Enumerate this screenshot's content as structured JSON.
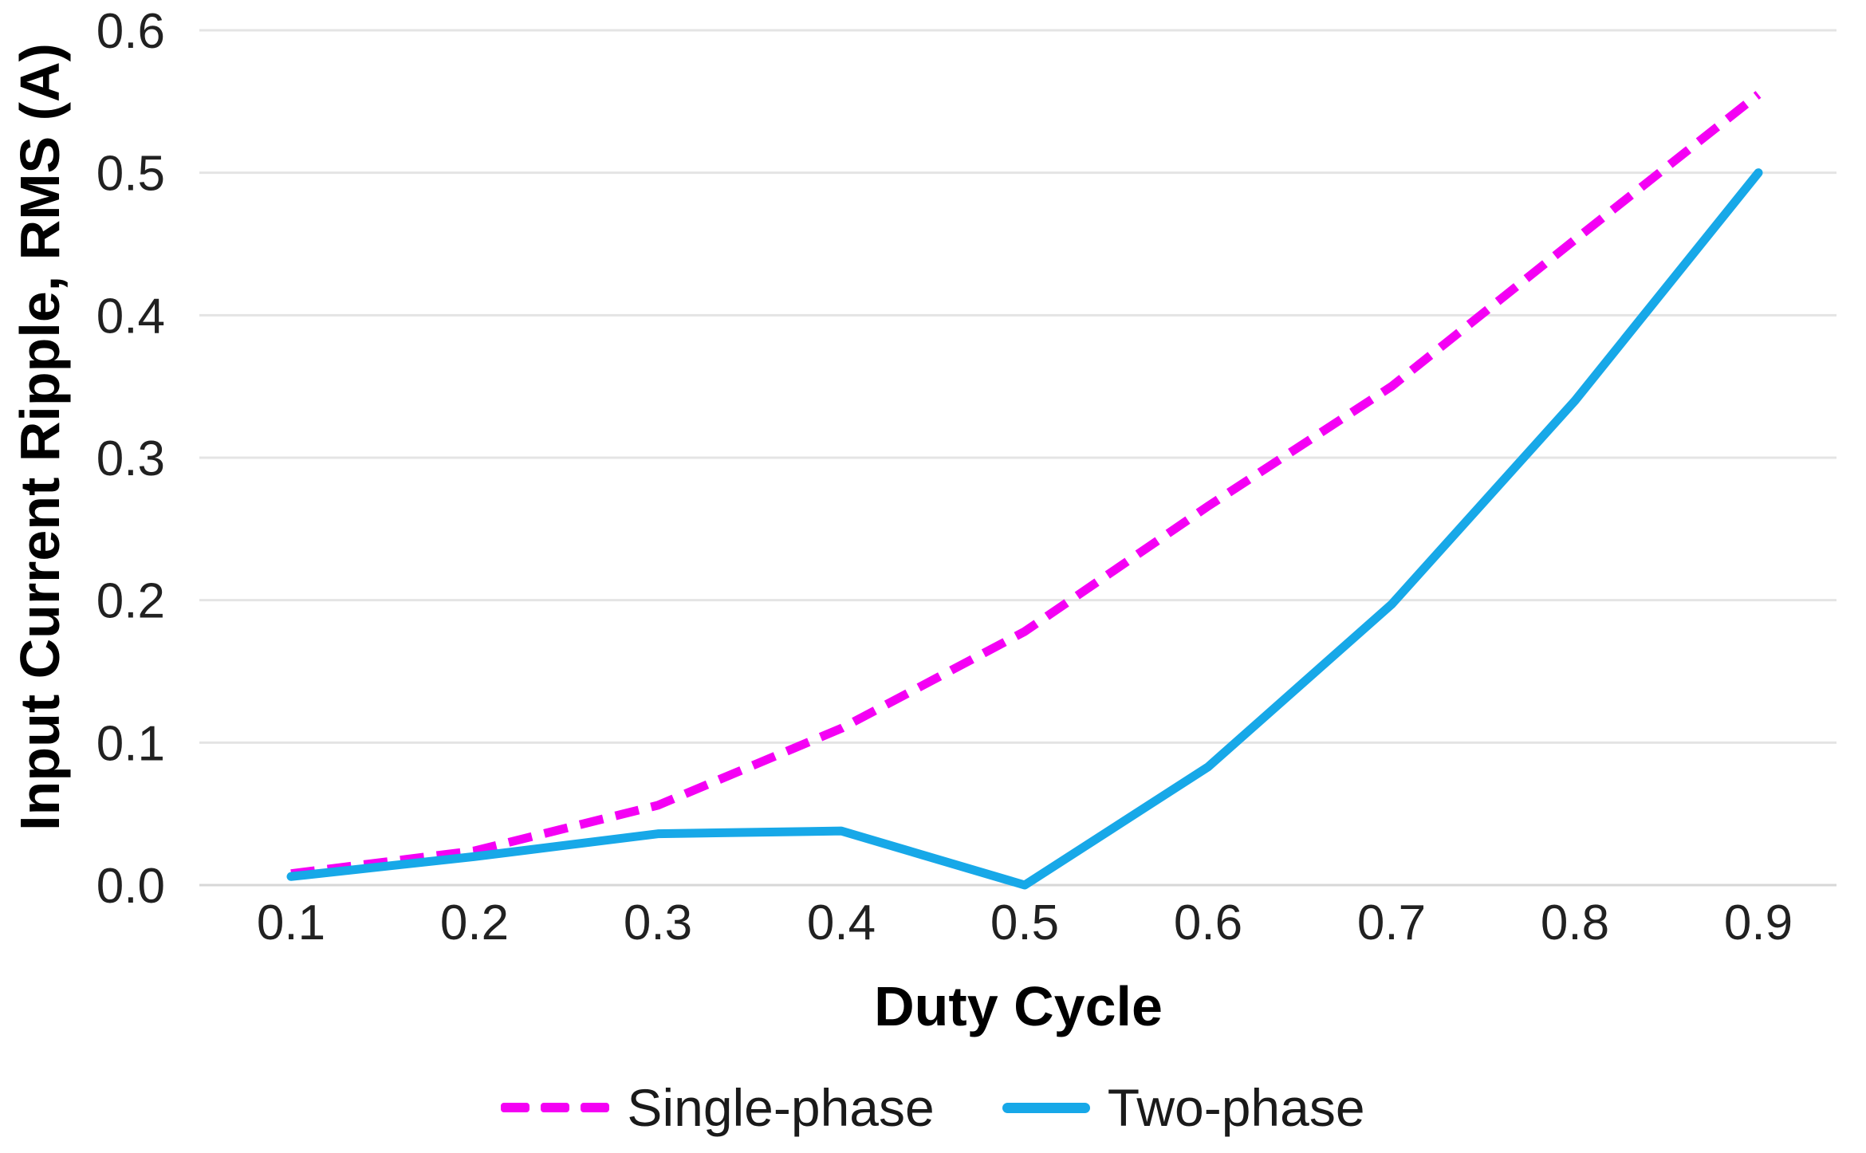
{
  "chart_data": {
    "type": "line",
    "title": "",
    "xlabel": "Duty Cycle",
    "ylabel": "Input Current Ripple, RMS (A)",
    "x": [
      0.1,
      0.2,
      0.3,
      0.4,
      0.5,
      0.6,
      0.7,
      0.8,
      0.9
    ],
    "xtick_labels": [
      "0.1",
      "0.2",
      "0.3",
      "0.4",
      "0.5",
      "0.6",
      "0.7",
      "0.8",
      "0.9"
    ],
    "yticks": [
      0.0,
      0.1,
      0.2,
      0.3,
      0.4,
      0.5,
      0.6
    ],
    "ytick_labels": [
      "0.0",
      "0.1",
      "0.2",
      "0.3",
      "0.4",
      "0.5",
      "0.6"
    ],
    "xlim": [
      0.05,
      0.9426
    ],
    "ylim": [
      0,
      0.6
    ],
    "grid": true,
    "legend_position": "bottom",
    "series": [
      {
        "name": "Single-phase",
        "style": "dashed",
        "color": "#F400F4",
        "values": [
          0.008,
          0.024,
          0.056,
          0.11,
          0.178,
          0.266,
          0.35,
          0.453,
          0.555
        ]
      },
      {
        "name": "Two-phase",
        "style": "solid",
        "color": "#17A8E8",
        "values": [
          0.006,
          0.02,
          0.036,
          0.038,
          0.0,
          0.083,
          0.197,
          0.34,
          0.5
        ]
      }
    ],
    "gridline_color": "#E4E4E4",
    "axis_line_color": "#D7D7D7",
    "tick_text_color": "#212121"
  }
}
